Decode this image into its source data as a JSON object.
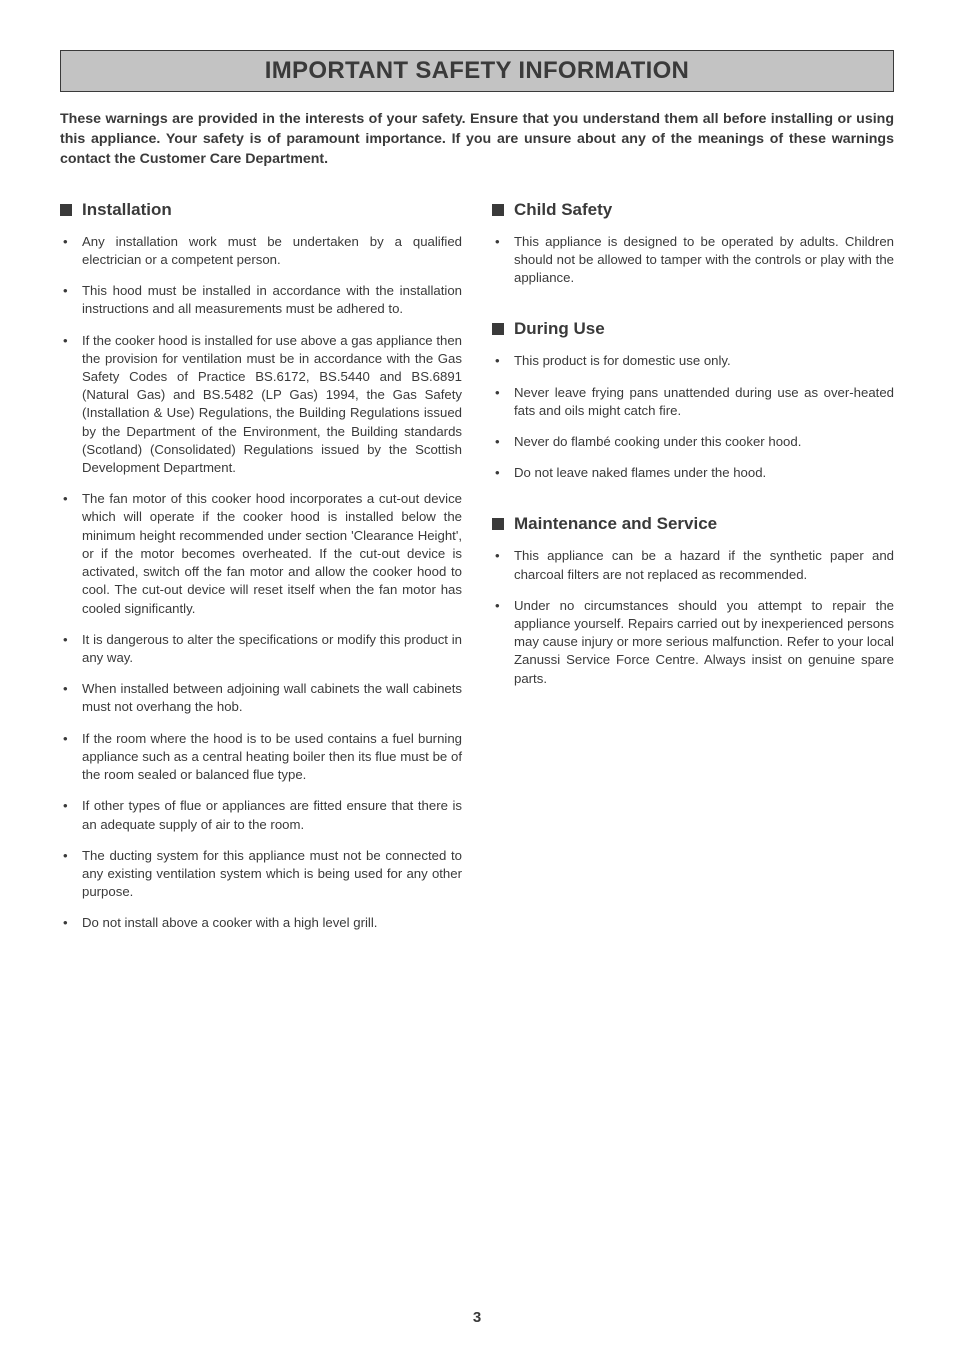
{
  "page_number": "3",
  "title": "IMPORTANT SAFETY INFORMATION",
  "intro": "These warnings are provided in the interests of your safety. Ensure that you understand them all before installing or using this appliance. Your safety is of paramount importance. If you are unsure about any of the meanings of these warnings contact the Customer Care Department.",
  "left_sections": [
    {
      "heading": "Installation",
      "items": [
        "Any installation work must be undertaken by a qualified electrician or a competent person.",
        "This hood must be installed in accordance with the installation instructions and all measurements must be adhered to.",
        "If the cooker hood is installed for use above a gas appliance then the provision for ventilation must be in accordance with the Gas Safety Codes of Practice BS.6172, BS.5440 and BS.6891 (Natural Gas) and BS.5482 (LP Gas) 1994, the Gas Safety (Installation & Use) Regulations, the Building Regulations issued by the Department of the Environment, the Building standards (Scotland) (Consolidated) Regulations issued by the Scottish Development Department.",
        "The fan motor of this cooker hood incorporates a cut-out device which will operate if the cooker hood is installed below the minimum height recommended under section 'Clearance Height', or if the motor becomes overheated. If the cut-out device is activated, switch off the fan motor and allow the cooker hood to cool. The cut-out device will reset itself when the fan motor has cooled significantly.",
        "It is dangerous to alter the specifications or modify this product in any way.",
        "When installed between adjoining wall cabinets the wall cabinets must not overhang the hob.",
        "If the room where the hood is to be used contains a fuel burning appliance such as a central heating boiler then its flue must be of the room sealed or balanced flue type.",
        "If other types of flue or appliances are fitted ensure that there is an adequate supply of air to the room.",
        "The ducting system for this appliance must not be connected to any existing ventilation system which is being used for any other purpose.",
        "Do not install above a cooker with a high level grill."
      ]
    }
  ],
  "right_sections": [
    {
      "heading": "Child Safety",
      "items": [
        "This appliance is designed to be operated by adults. Children should not be allowed to tamper with the controls or play with the appliance."
      ]
    },
    {
      "heading": "During Use",
      "items": [
        "This product is for domestic use only.",
        "Never leave frying pans unattended during use as over-heated fats and oils might catch fire.",
        "Never do flambé cooking under this cooker hood.",
        "Do not leave naked flames under the hood."
      ]
    },
    {
      "heading": "Maintenance and Service",
      "items": [
        "This appliance can be a hazard if the synthetic paper and charcoal filters are not replaced as recommended.",
        "Under no circumstances should you attempt to repair the appliance yourself. Repairs carried out by inexperienced persons may cause injury or more serious malfunction. Refer to your local Zanussi Service Force Centre. Always insist on genuine spare parts."
      ]
    }
  ]
}
